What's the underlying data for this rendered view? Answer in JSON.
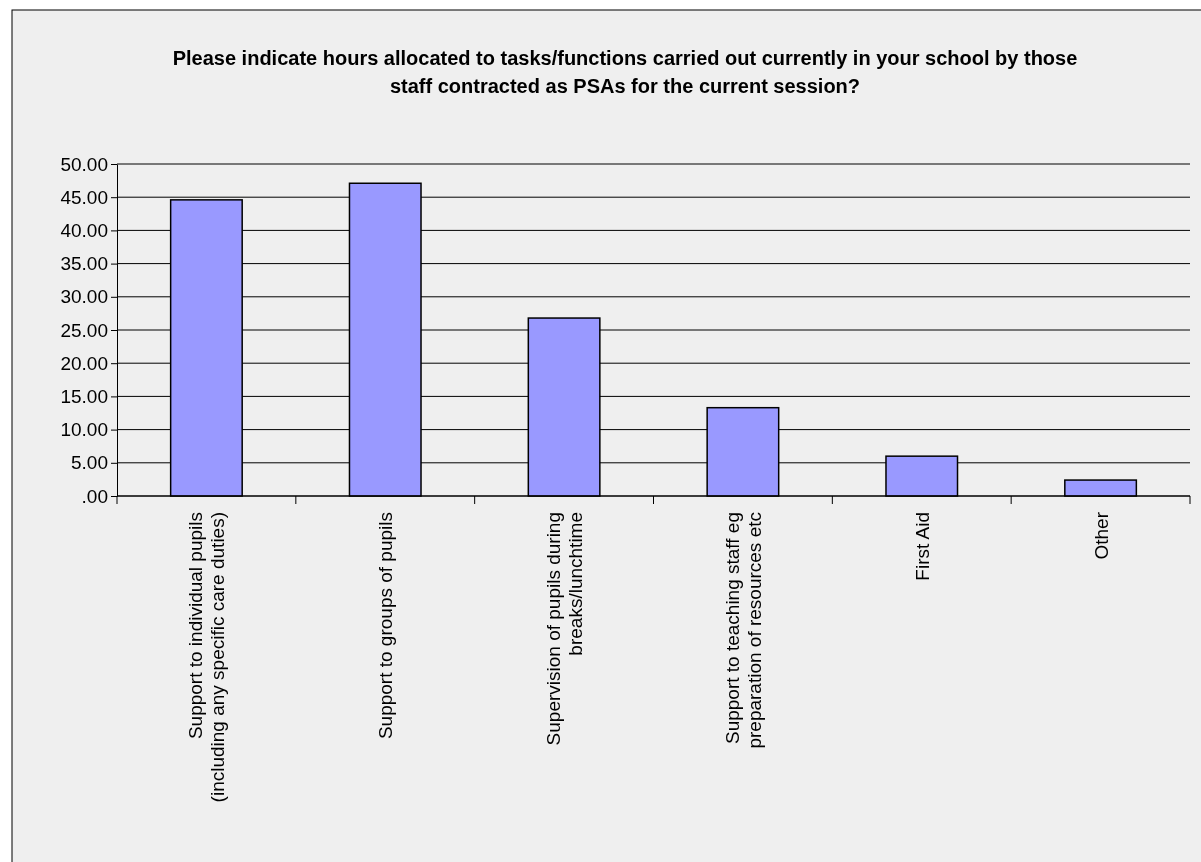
{
  "chart_data": {
    "type": "bar",
    "title": "Please indicate hours allocated to tasks/functions carried out currently in your school by those staff contracted as PSAs for the current session?",
    "categories": [
      "Support to individual pupils (including any specific care duties)",
      "Support to groups of pupils",
      "Supervision of pupils during breaks/lunchtime",
      "Support to teaching staff eg preparation of resources etc",
      "First Aid",
      "Other"
    ],
    "values": [
      44.6,
      47.1,
      26.8,
      13.3,
      6.0,
      2.4
    ],
    "color": "#9999ff",
    "ylim": [
      0,
      50
    ],
    "yticks": [
      {
        "value": 0,
        "label": ".00"
      },
      {
        "value": 5,
        "label": "5.00"
      },
      {
        "value": 10,
        "label": "10.00"
      },
      {
        "value": 15,
        "label": "15.00"
      },
      {
        "value": 20,
        "label": "20.00"
      },
      {
        "value": 25,
        "label": "25.00"
      },
      {
        "value": 30,
        "label": "30.00"
      },
      {
        "value": 35,
        "label": "35.00"
      },
      {
        "value": 40,
        "label": "40.00"
      },
      {
        "value": 45,
        "label": "45.00"
      },
      {
        "value": 50,
        "label": "50.00"
      }
    ],
    "grid": "y"
  }
}
